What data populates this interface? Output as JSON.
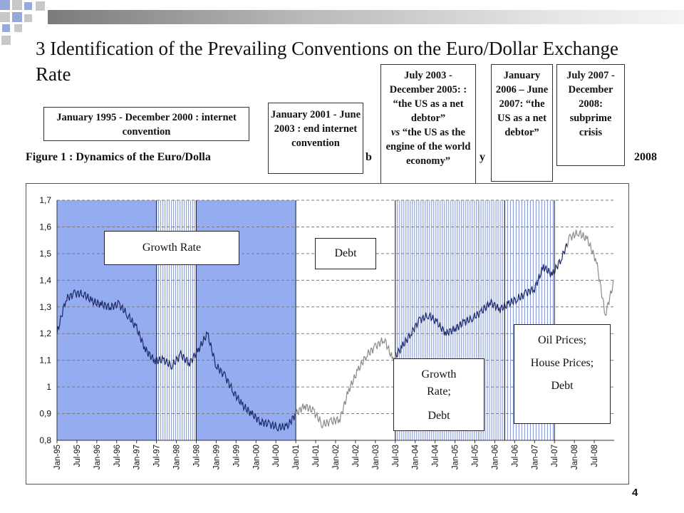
{
  "slide": {
    "title": "3 Identification of the Prevailing Conventions on the Euro/Dollar Exchange Rate",
    "page_number": "4"
  },
  "callouts": {
    "c1": "January 1995 - December 2000 : internet convention",
    "c2": "January 2001 - June 2003 : end internet convention",
    "c3_a": "July 2003 - December 2005: : “the US as a net debtor”",
    "c3_vs": "vs",
    "c3_b": "“the US as the engine of the world economy”",
    "c4": "January 2006 – June 2007: “the US as a net debtor”",
    "c5": "July 2007 - December 2008: subprime crisis"
  },
  "figure": {
    "caption_visible": "Figure 1 : Dynamics of the Euro/Dolla",
    "caption_tail_fragment": "b",
    "caption_tail_fragment2": "y",
    "caption_end": "2008"
  },
  "chart_labels": {
    "l1": "Growth Rate",
    "l2": "Debt",
    "l3_a": "Growth Rate;",
    "l3_b": "Debt",
    "l4_a": "Oil Prices;",
    "l4_b": "House Prices;",
    "l4_c": "Debt"
  },
  "colors": {
    "shade_blue": "#96acf0",
    "stripe_blue": "#7e93d8",
    "line_dark": "#1b2a66",
    "line_grey": "#8a8a8a",
    "deco_blue": "#97a9dc",
    "deco_grey": "#c8c8c8"
  },
  "chart_data": {
    "type": "line",
    "title": "",
    "xlabel": "",
    "ylabel": "",
    "ylim": [
      0.8,
      1.7
    ],
    "yticks": [
      "0,8",
      "0,9",
      "1",
      "1,1",
      "1,2",
      "1,3",
      "1,4",
      "1,5",
      "1,6",
      "1,7"
    ],
    "xticks": [
      "Jan-95",
      "Jul-95",
      "Jan-96",
      "Jul-96",
      "Jan-97",
      "Jul-97",
      "Jan-98",
      "Jul-98",
      "Jan-99",
      "Jul-99",
      "Jan-00",
      "Jul-00",
      "Jan-01",
      "Jul-01",
      "Jan-02",
      "Jul-02",
      "Jan-03",
      "Jul-03",
      "Jan-04",
      "Jul-04",
      "Jan-05",
      "Jul-05",
      "Jan-06",
      "Jul-06",
      "Jan-07",
      "Jul-07",
      "Jan-08",
      "Jul-08"
    ],
    "grid": "horizontal dashed",
    "series": [
      {
        "values": [
          1.2,
          1.33,
          1.35,
          1.35,
          1.32,
          1.31,
          1.3,
          1.31,
          1.27,
          1.22,
          1.14,
          1.1,
          1.1,
          1.08,
          1.12,
          1.09,
          1.14,
          1.2,
          1.08,
          1.04,
          0.98,
          0.93,
          0.9,
          0.87,
          0.86,
          0.85,
          0.85,
          0.9,
          0.93,
          0.91,
          0.86,
          0.87,
          0.88,
          0.99,
          1.06,
          1.12,
          1.15,
          1.18,
          1.1,
          1.15,
          1.2,
          1.25,
          1.27,
          1.24,
          1.2,
          1.22,
          1.24,
          1.26,
          1.28,
          1.32,
          1.29,
          1.31,
          1.33,
          1.35,
          1.37,
          1.45,
          1.42,
          1.48,
          1.56,
          1.58,
          1.55,
          1.47,
          1.27,
          1.4
        ]
      }
    ]
  }
}
